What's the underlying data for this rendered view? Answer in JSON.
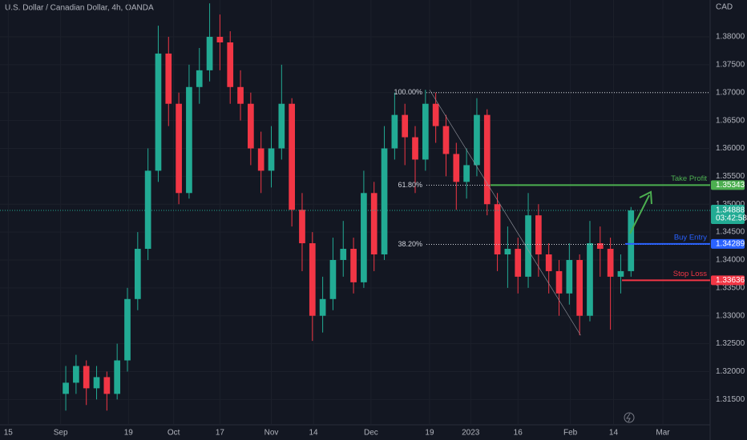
{
  "chart_data": {
    "type": "candlestick",
    "title": "U.S. Dollar / Canadian Dollar, 4h, OANDA",
    "currency": "CAD",
    "countdown": "03:42:58",
    "up_color": "#22ab94",
    "down_color": "#f23645",
    "open": [
      1.316,
      1.318,
      1.321,
      1.317,
      1.319,
      1.316,
      1.322,
      1.333,
      1.342,
      1.356,
      1.377,
      1.368,
      1.352,
      1.371,
      1.374,
      1.38,
      1.379,
      1.371,
      1.368,
      1.36,
      1.356,
      1.36,
      1.368,
      1.349,
      1.343,
      1.33,
      1.333,
      1.34,
      1.342,
      1.336,
      1.352,
      1.341,
      1.36,
      1.366,
      1.362,
      1.358,
      1.368,
      1.364,
      1.359,
      1.354,
      1.357,
      1.366,
      1.35,
      1.341,
      1.342,
      1.337,
      1.348,
      1.341,
      1.338,
      1.334,
      1.34,
      1.33,
      1.343,
      1.342,
      1.337,
      1.338
    ],
    "high": [
      1.321,
      1.323,
      1.322,
      1.321,
      1.32,
      1.325,
      1.335,
      1.345,
      1.36,
      1.382,
      1.38,
      1.37,
      1.375,
      1.378,
      1.386,
      1.384,
      1.381,
      1.374,
      1.37,
      1.363,
      1.364,
      1.375,
      1.369,
      1.352,
      1.345,
      1.337,
      1.344,
      1.347,
      1.344,
      1.356,
      1.354,
      1.364,
      1.37,
      1.368,
      1.364,
      1.3705,
      1.37,
      1.366,
      1.361,
      1.36,
      1.369,
      1.367,
      1.352,
      1.346,
      1.344,
      1.352,
      1.35,
      1.343,
      1.34,
      1.343,
      1.341,
      1.347,
      1.346,
      1.344,
      1.341,
      1.3495
    ],
    "low": [
      1.313,
      1.316,
      1.314,
      1.315,
      1.313,
      1.315,
      1.32,
      1.331,
      1.34,
      1.354,
      1.364,
      1.35,
      1.351,
      1.368,
      1.372,
      1.374,
      1.368,
      1.365,
      1.357,
      1.352,
      1.353,
      1.358,
      1.346,
      1.338,
      1.3255,
      1.327,
      1.331,
      1.337,
      1.334,
      1.335,
      1.338,
      1.34,
      1.358,
      1.357,
      1.352,
      1.356,
      1.361,
      1.355,
      1.349,
      1.351,
      1.355,
      1.348,
      1.338,
      1.335,
      1.334,
      1.335,
      1.337,
      1.334,
      1.33,
      1.332,
      1.3265,
      1.329,
      1.337,
      1.3275,
      1.334,
      1.337
    ],
    "close": [
      1.318,
      1.321,
      1.317,
      1.319,
      1.316,
      1.322,
      1.333,
      1.342,
      1.356,
      1.377,
      1.368,
      1.352,
      1.371,
      1.374,
      1.38,
      1.379,
      1.371,
      1.368,
      1.36,
      1.356,
      1.36,
      1.368,
      1.349,
      1.343,
      1.33,
      1.333,
      1.34,
      1.342,
      1.336,
      1.352,
      1.341,
      1.36,
      1.366,
      1.362,
      1.358,
      1.368,
      1.364,
      1.359,
      1.354,
      1.357,
      1.366,
      1.35,
      1.341,
      1.342,
      1.337,
      1.348,
      1.341,
      1.338,
      1.334,
      1.34,
      1.33,
      1.343,
      1.342,
      1.337,
      1.338,
      1.34888
    ],
    "xlim": [
      -6.4,
      62.7
    ],
    "xticks": [
      {
        "value": -5.6,
        "label": "15"
      },
      {
        "value": -0.5,
        "label": "Sep"
      },
      {
        "value": 6.1,
        "label": "19"
      },
      {
        "value": 10.5,
        "label": "Oct"
      },
      {
        "value": 15,
        "label": "17"
      },
      {
        "value": 20,
        "label": "Nov"
      },
      {
        "value": 24.1,
        "label": "14"
      },
      {
        "value": 29.7,
        "label": "Dec"
      },
      {
        "value": 35.4,
        "label": "19"
      },
      {
        "value": 39.4,
        "label": "2023"
      },
      {
        "value": 44,
        "label": "16"
      },
      {
        "value": 49.1,
        "label": "Feb"
      },
      {
        "value": 53.3,
        "label": "14"
      },
      {
        "value": 58.1,
        "label": "Mar"
      }
    ],
    "ylim": [
      1.3106,
      1.3866
    ],
    "yticks": [
      {
        "value": 1.315,
        "label": "1.31500"
      },
      {
        "value": 1.32,
        "label": "1.32000"
      },
      {
        "value": 1.325,
        "label": "1.32500"
      },
      {
        "value": 1.33,
        "label": "1.33000"
      },
      {
        "value": 1.335,
        "label": "1.33500"
      },
      {
        "value": 1.34,
        "label": "1.34000"
      },
      {
        "value": 1.345,
        "label": "1.34500"
      },
      {
        "value": 1.35,
        "label": "1.35000"
      },
      {
        "value": 1.355,
        "label": "1.35500"
      },
      {
        "value": 1.36,
        "label": "1.36000"
      },
      {
        "value": 1.365,
        "label": "1.36500"
      },
      {
        "value": 1.37,
        "label": "1.37000"
      },
      {
        "value": 1.375,
        "label": "1.37500"
      },
      {
        "value": 1.38,
        "label": "1.38000"
      }
    ],
    "fib_line": {
      "x": [
        35.4,
        50.1
      ],
      "y": [
        1.3705,
        1.3265
      ]
    },
    "fib_levels": [
      {
        "label": "100.00%",
        "value": 1.37
      },
      {
        "label": "61.80%",
        "value": 1.3534
      },
      {
        "label": "38.20%",
        "value": 1.3428
      }
    ],
    "trade_levels": [
      {
        "name": "Take Profit",
        "value": 1.35343,
        "color": "#4caf50"
      },
      {
        "name": "Buy Entry",
        "value": 1.34289,
        "color": "#2962ff"
      },
      {
        "name": "Stop Loss",
        "value": 1.33636,
        "color": "#f23645"
      }
    ]
  }
}
